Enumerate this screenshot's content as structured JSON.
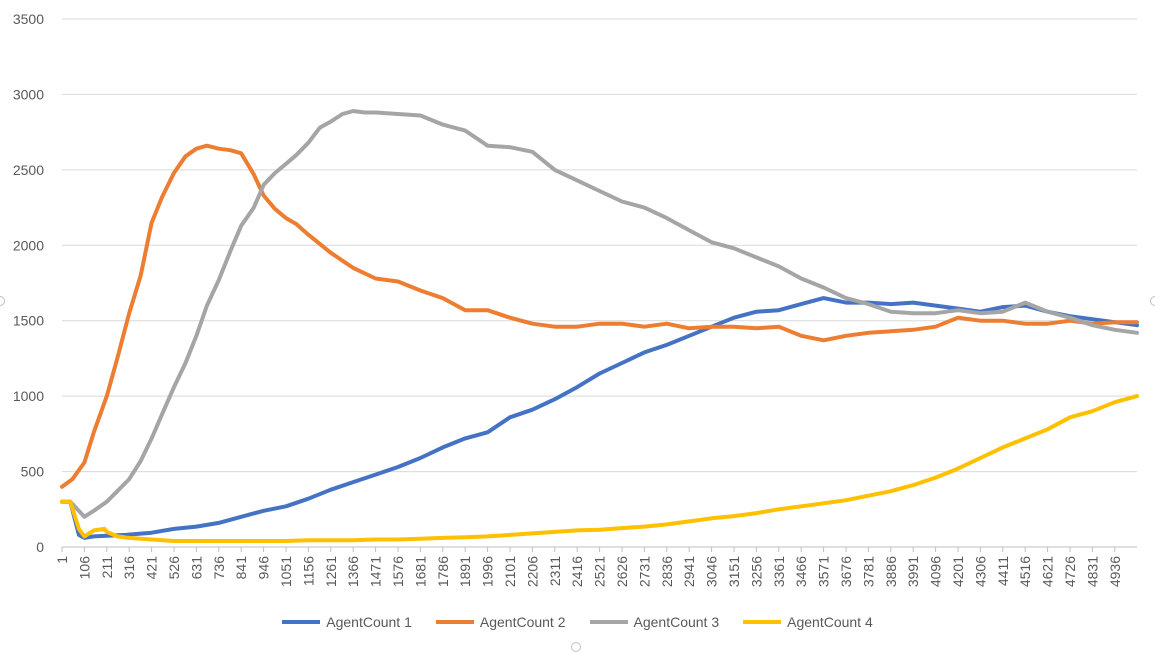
{
  "chart_data": {
    "type": "line",
    "title": "",
    "xlabel": "",
    "ylabel": "",
    "ylim": [
      0,
      3500
    ],
    "yticks": [
      0,
      500,
      1000,
      1500,
      2000,
      2500,
      3000,
      3500
    ],
    "xlim": [
      1,
      5040
    ],
    "xticks": [
      1,
      106,
      211,
      316,
      421,
      526,
      631,
      736,
      841,
      946,
      1051,
      1156,
      1261,
      1366,
      1471,
      1576,
      1681,
      1786,
      1891,
      1996,
      2101,
      2206,
      2311,
      2416,
      2521,
      2626,
      2731,
      2836,
      2941,
      3046,
      3151,
      3256,
      3361,
      3466,
      3571,
      3676,
      3781,
      3886,
      3991,
      4096,
      4201,
      4306,
      4411,
      4516,
      4621,
      4726,
      4831,
      4936
    ],
    "grid": "horizontal",
    "legend_position": "bottom",
    "series": [
      {
        "name": "AgentCount 1",
        "color": "#4472C4",
        "x": [
          1,
          40,
          80,
          106,
          150,
          211,
          300,
          421,
          526,
          631,
          736,
          841,
          946,
          1051,
          1156,
          1261,
          1366,
          1471,
          1576,
          1681,
          1786,
          1891,
          1996,
          2101,
          2206,
          2311,
          2416,
          2521,
          2626,
          2731,
          2836,
          2941,
          3046,
          3151,
          3256,
          3361,
          3466,
          3571,
          3676,
          3781,
          3886,
          3991,
          4096,
          4201,
          4306,
          4411,
          4516,
          4621,
          4726,
          4831,
          4936,
          5040
        ],
        "y": [
          300,
          300,
          80,
          60,
          70,
          75,
          80,
          95,
          120,
          135,
          160,
          200,
          240,
          270,
          320,
          380,
          430,
          480,
          530,
          590,
          660,
          720,
          760,
          860,
          910,
          980,
          1060,
          1150,
          1220,
          1290,
          1340,
          1400,
          1460,
          1520,
          1560,
          1570,
          1610,
          1650,
          1620,
          1620,
          1610,
          1620,
          1600,
          1580,
          1560,
          1590,
          1600,
          1560,
          1530,
          1510,
          1490,
          1470
        ]
      },
      {
        "name": "AgentCount 2",
        "color": "#ED7D31",
        "x": [
          1,
          50,
          106,
          150,
          211,
          260,
          316,
          370,
          421,
          470,
          526,
          580,
          631,
          680,
          736,
          790,
          841,
          900,
          946,
          1000,
          1051,
          1100,
          1156,
          1261,
          1366,
          1471,
          1576,
          1681,
          1786,
          1891,
          1996,
          2101,
          2206,
          2311,
          2416,
          2521,
          2626,
          2731,
          2836,
          2941,
          3046,
          3151,
          3256,
          3361,
          3466,
          3571,
          3676,
          3781,
          3886,
          3991,
          4096,
          4201,
          4306,
          4411,
          4516,
          4621,
          4726,
          4831,
          4936,
          5040
        ],
        "y": [
          400,
          450,
          560,
          760,
          1000,
          1250,
          1550,
          1800,
          2150,
          2320,
          2480,
          2590,
          2640,
          2660,
          2640,
          2630,
          2610,
          2470,
          2330,
          2240,
          2180,
          2140,
          2070,
          1950,
          1850,
          1780,
          1760,
          1700,
          1650,
          1570,
          1570,
          1520,
          1480,
          1460,
          1460,
          1480,
          1480,
          1460,
          1480,
          1450,
          1460,
          1460,
          1450,
          1460,
          1400,
          1370,
          1400,
          1420,
          1430,
          1440,
          1460,
          1520,
          1500,
          1500,
          1480,
          1480,
          1500,
          1480,
          1490,
          1490
        ]
      },
      {
        "name": "AgentCount 3",
        "color": "#A5A5A5",
        "x": [
          1,
          40,
          106,
          150,
          211,
          260,
          316,
          370,
          421,
          470,
          526,
          580,
          631,
          680,
          736,
          790,
          841,
          900,
          946,
          1000,
          1051,
          1100,
          1156,
          1210,
          1261,
          1316,
          1366,
          1420,
          1471,
          1576,
          1681,
          1786,
          1891,
          1996,
          2101,
          2206,
          2311,
          2416,
          2521,
          2626,
          2731,
          2836,
          2941,
          3046,
          3151,
          3256,
          3361,
          3466,
          3571,
          3676,
          3781,
          3886,
          3991,
          4096,
          4201,
          4306,
          4411,
          4516,
          4621,
          4726,
          4831,
          4936,
          5040
        ],
        "y": [
          300,
          300,
          200,
          240,
          300,
          370,
          450,
          570,
          720,
          880,
          1060,
          1220,
          1400,
          1600,
          1770,
          1960,
          2130,
          2250,
          2400,
          2480,
          2540,
          2600,
          2680,
          2780,
          2820,
          2870,
          2890,
          2880,
          2880,
          2870,
          2860,
          2800,
          2760,
          2660,
          2650,
          2620,
          2500,
          2430,
          2360,
          2290,
          2250,
          2180,
          2100,
          2020,
          1980,
          1920,
          1860,
          1780,
          1720,
          1650,
          1610,
          1560,
          1550,
          1550,
          1570,
          1550,
          1560,
          1620,
          1560,
          1520,
          1470,
          1440,
          1420
        ]
      },
      {
        "name": "AgentCount 4",
        "color": "#FFC000",
        "x": [
          1,
          40,
          80,
          106,
          150,
          200,
          211,
          260,
          316,
          421,
          526,
          631,
          736,
          841,
          946,
          1051,
          1156,
          1261,
          1366,
          1471,
          1576,
          1681,
          1786,
          1891,
          1996,
          2101,
          2206,
          2311,
          2416,
          2521,
          2626,
          2731,
          2836,
          2941,
          3046,
          3151,
          3256,
          3361,
          3466,
          3571,
          3676,
          3781,
          3886,
          3991,
          4096,
          4201,
          4306,
          4411,
          4516,
          4621,
          4726,
          4831,
          4936,
          5040
        ],
        "y": [
          300,
          300,
          120,
          70,
          110,
          120,
          100,
          70,
          60,
          50,
          40,
          40,
          40,
          40,
          40,
          40,
          45,
          45,
          45,
          50,
          50,
          55,
          60,
          65,
          70,
          80,
          90,
          100,
          110,
          115,
          125,
          135,
          150,
          170,
          190,
          205,
          225,
          250,
          270,
          290,
          310,
          340,
          370,
          410,
          460,
          520,
          590,
          660,
          720,
          780,
          860,
          900,
          960,
          1000
        ]
      }
    ]
  },
  "legend": {
    "items": [
      {
        "label": "AgentCount 1",
        "color": "#4472C4"
      },
      {
        "label": "AgentCount 2",
        "color": "#ED7D31"
      },
      {
        "label": "AgentCount 3",
        "color": "#A5A5A5"
      },
      {
        "label": "AgentCount 4",
        "color": "#FFC000"
      }
    ]
  }
}
